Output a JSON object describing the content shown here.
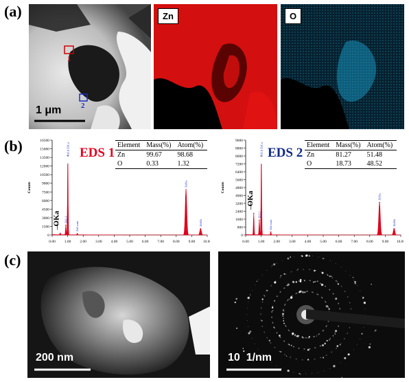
{
  "panel_labels": {
    "a": "(a)",
    "b": "(b)",
    "c": "(c)"
  },
  "map_labels": {
    "zn": "Zn",
    "o": "O"
  },
  "stem": {
    "scale_bar": "1 μm",
    "region_1": "1",
    "region_2": "2"
  },
  "tem": {
    "scale_bar": "200 nm"
  },
  "saed": {
    "scale_bar": "10  1/nm"
  },
  "colors": {
    "eds1_title": "#e8001f",
    "eds2_title": "#102a8a",
    "spectrum": "#e0001b",
    "peak_label": "#1a2ed0",
    "zn_map": "#e01010",
    "o_map": "#1aa9d6"
  },
  "chart_data": [
    {
      "type": "line",
      "title": "EDS 1",
      "xlabel": "keV",
      "ylabel": "Counts",
      "xlim": [
        0,
        10
      ],
      "ylim": [
        0,
        16500
      ],
      "x_ticks": [
        "0.00",
        "1.00",
        "2.00",
        "3.00",
        "4.00",
        "5.00",
        "6.00",
        "7.00",
        "8.00",
        "9.00",
        "10.00"
      ],
      "y_ticks": [
        0,
        1500,
        3000,
        4500,
        6000,
        7500,
        9000,
        10500,
        12000,
        13500,
        15000,
        16500
      ],
      "peaks": [
        {
          "label": "OKa",
          "x": 0.52,
          "y": 300
        },
        {
          "label": "ZnL1",
          "x": 0.88,
          "y": 1700
        },
        {
          "label": "ZnLb ZnLa",
          "x": 1.01,
          "y": 13800
        },
        {
          "label": "ZnLsum",
          "x": 1.62,
          "y": 250
        },
        {
          "label": "ZnKa",
          "x": 8.63,
          "y": 7900
        },
        {
          "label": "ZnKb",
          "x": 9.57,
          "y": 1100
        }
      ],
      "table": {
        "headers": [
          "Element",
          "Mass(%)",
          "Atom(%)"
        ],
        "rows": [
          [
            "Zn",
            "99.67",
            "98.68"
          ],
          [
            "O",
            "0.33",
            "1.32"
          ]
        ]
      }
    },
    {
      "type": "line",
      "title": "EDS 2",
      "xlabel": "keV",
      "ylabel": "Counts",
      "xlim": [
        0,
        10
      ],
      "ylim": [
        0,
        9600
      ],
      "x_ticks": [
        "0.00",
        "1.00",
        "2.00",
        "3.00",
        "4.00",
        "5.00",
        "6.00",
        "7.00",
        "8.00",
        "9.00",
        "10.00"
      ],
      "y_ticks": [
        0,
        800,
        1600,
        2400,
        3200,
        4000,
        4800,
        5600,
        6400,
        7200,
        8000,
        8800,
        9600
      ],
      "peaks": [
        {
          "label": "OKa",
          "x": 0.52,
          "y": 2200
        },
        {
          "label": "ZnL1",
          "x": 0.88,
          "y": 1500
        },
        {
          "label": "ZnLb ZnLa",
          "x": 1.01,
          "y": 8000
        },
        {
          "label": "ZnLsum",
          "x": 1.62,
          "y": 300
        },
        {
          "label": "ZnKa",
          "x": 8.63,
          "y": 3300
        },
        {
          "label": "ZnKb",
          "x": 9.57,
          "y": 650
        }
      ],
      "table": {
        "headers": [
          "Element",
          "Mass(%)",
          "Atom(%)"
        ],
        "rows": [
          [
            "Zn",
            "81.27",
            "51.48"
          ],
          [
            "O",
            "18.73",
            "48.52"
          ]
        ]
      }
    }
  ]
}
